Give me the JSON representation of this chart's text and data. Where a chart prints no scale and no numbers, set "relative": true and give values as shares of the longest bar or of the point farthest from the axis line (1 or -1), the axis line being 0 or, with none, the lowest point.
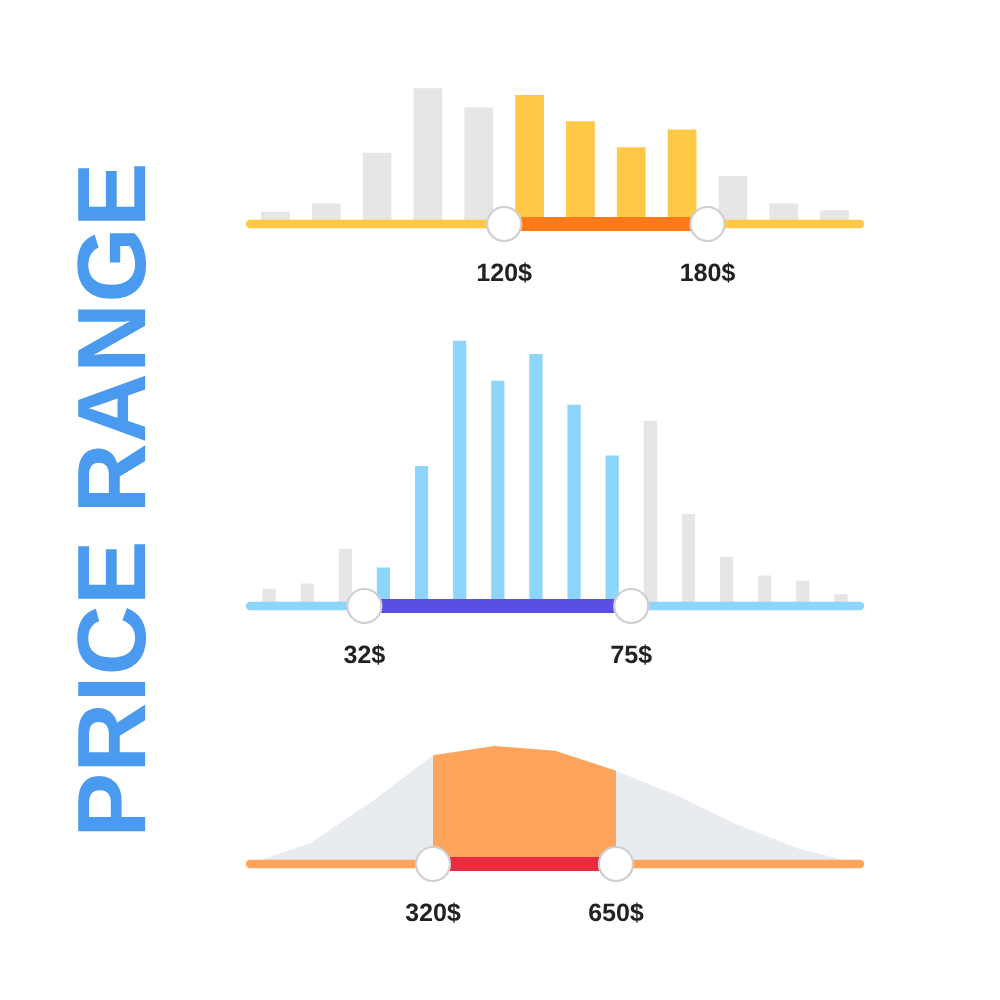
{
  "chart_data": [
    {
      "type": "bar",
      "title": "PRICE RANGE",
      "relative": true,
      "categories": [
        null,
        null,
        null,
        null,
        null,
        null,
        null,
        null,
        null,
        null,
        null,
        null
      ],
      "values": [
        0.1,
        0.16,
        0.53,
        1,
        0.86,
        0.95,
        0.76,
        0.57,
        0.7,
        0.36,
        0.16,
        0.11
      ],
      "colors": [
        "#e6e6e6",
        "#e6e6e6",
        "#e6e6e6",
        "#e6e6e6",
        "#e6e6e6",
        "#ffc845",
        "#ffc845",
        "#ffc845",
        "#ffc845",
        "#e6e6e6",
        "#e6e6e6",
        "#e6e6e6"
      ],
      "annotations": [
        "120$",
        "180$"
      ]
    },
    {
      "type": "bar",
      "relative": true,
      "categories": [
        null,
        null,
        null,
        null,
        null,
        null,
        null,
        null,
        null,
        null,
        null,
        null,
        null,
        null,
        null,
        null
      ],
      "values": [
        0.07,
        0.09,
        0.22,
        0.15,
        0.53,
        1,
        0.85,
        0.95,
        0.76,
        0.57,
        0.7,
        0.35,
        0.19,
        0.12,
        0.1,
        0.05
      ],
      "colors": [
        "#e6e6e6",
        "#e6e6e6",
        "#e6e6e6",
        "#8dd5fb",
        "#8dd5fb",
        "#8dd5fb",
        "#8dd5fb",
        "#8dd5fb",
        "#8dd5fb",
        "#8dd5fb",
        "#e6e6e6",
        "#e6e6e6",
        "#e6e6e6",
        "#e6e6e6",
        "#e6e6e6",
        "#e6e6e6"
      ],
      "annotations": [
        "32$",
        "75$"
      ]
    },
    {
      "type": "area",
      "relative": true,
      "categories": [
        null,
        null,
        null,
        null,
        null,
        null,
        null,
        null,
        null,
        null,
        null
      ],
      "series": [
        {
          "color": "#e8ebef",
          "values": [
            0,
            0.18,
            0.53,
            0.92,
            null,
            null,
            0.79,
            0.58,
            0.33,
            0.13,
            0
          ]
        },
        {
          "color": "#ffa45c",
          "values": [
            null,
            null,
            null,
            0.92,
            1,
            0.96,
            0.79,
            null,
            null,
            null,
            null
          ]
        }
      ],
      "annotations": [
        "320$",
        "650$"
      ]
    }
  ]
}
